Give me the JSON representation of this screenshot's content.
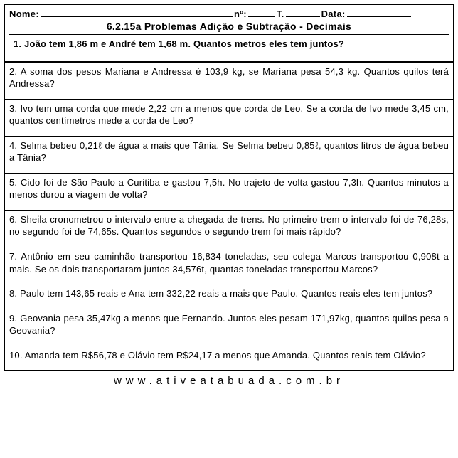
{
  "header": {
    "name_label": "Nome:",
    "num_label": "nº:",
    "t_label": "T.",
    "date_label": "Data:"
  },
  "title": "6.2.15a Problemas Adição e Subtração - Decimais",
  "problems": [
    "1. João tem 1,86 m e André tem 1,68 m. Quantos metros eles tem juntos?",
    "2. A soma dos pesos Mariana e Andressa é 103,9 kg, se Mariana pesa 54,3 kg. Quantos quilos terá Andressa?",
    "3. Ivo tem uma  corda que mede 2,22 cm a menos que  corda de Leo. Se a  corda de Ivo mede 3,45 cm, quantos centímetros mede a corda de Leo?",
    "4. Selma bebeu 0,21ℓ de água a mais que Tânia. Se Selma bebeu 0,85ℓ, quantos litros de água bebeu a Tânia?",
    "5. Cido foi de São Paulo a Curitiba e gastou 7,5h. No trajeto de volta gastou 7,3h. Quantos minutos a menos durou a viagem de volta?",
    "6. Sheila cronometrou o intervalo entre a chegada de trens. No primeiro trem o intervalo foi de 76,28s, no segundo foi de 74,65s. Quantos segundos o segundo trem foi mais rápido?",
    "7. Antônio em seu caminhão transportou 16,834 toneladas, seu colega Marcos transportou 0,908t a mais. Se os dois transportaram juntos 34,576t, quantas toneladas transportou Marcos?",
    "8. Paulo tem 143,65 reais e Ana tem 332,22 reais a mais que Paulo. Quantos reais eles tem juntos?",
    "9. Geovania pesa 35,47kg a menos que Fernando. Juntos eles pesam 171,97kg, quantos quilos pesa a Geovania?",
    "10. Amanda tem R$56,78 e Olávio tem R$24,17 a menos que Amanda. Quantos reais tem Olávio?"
  ],
  "footer": "www.ativeatabuada.com.br"
}
